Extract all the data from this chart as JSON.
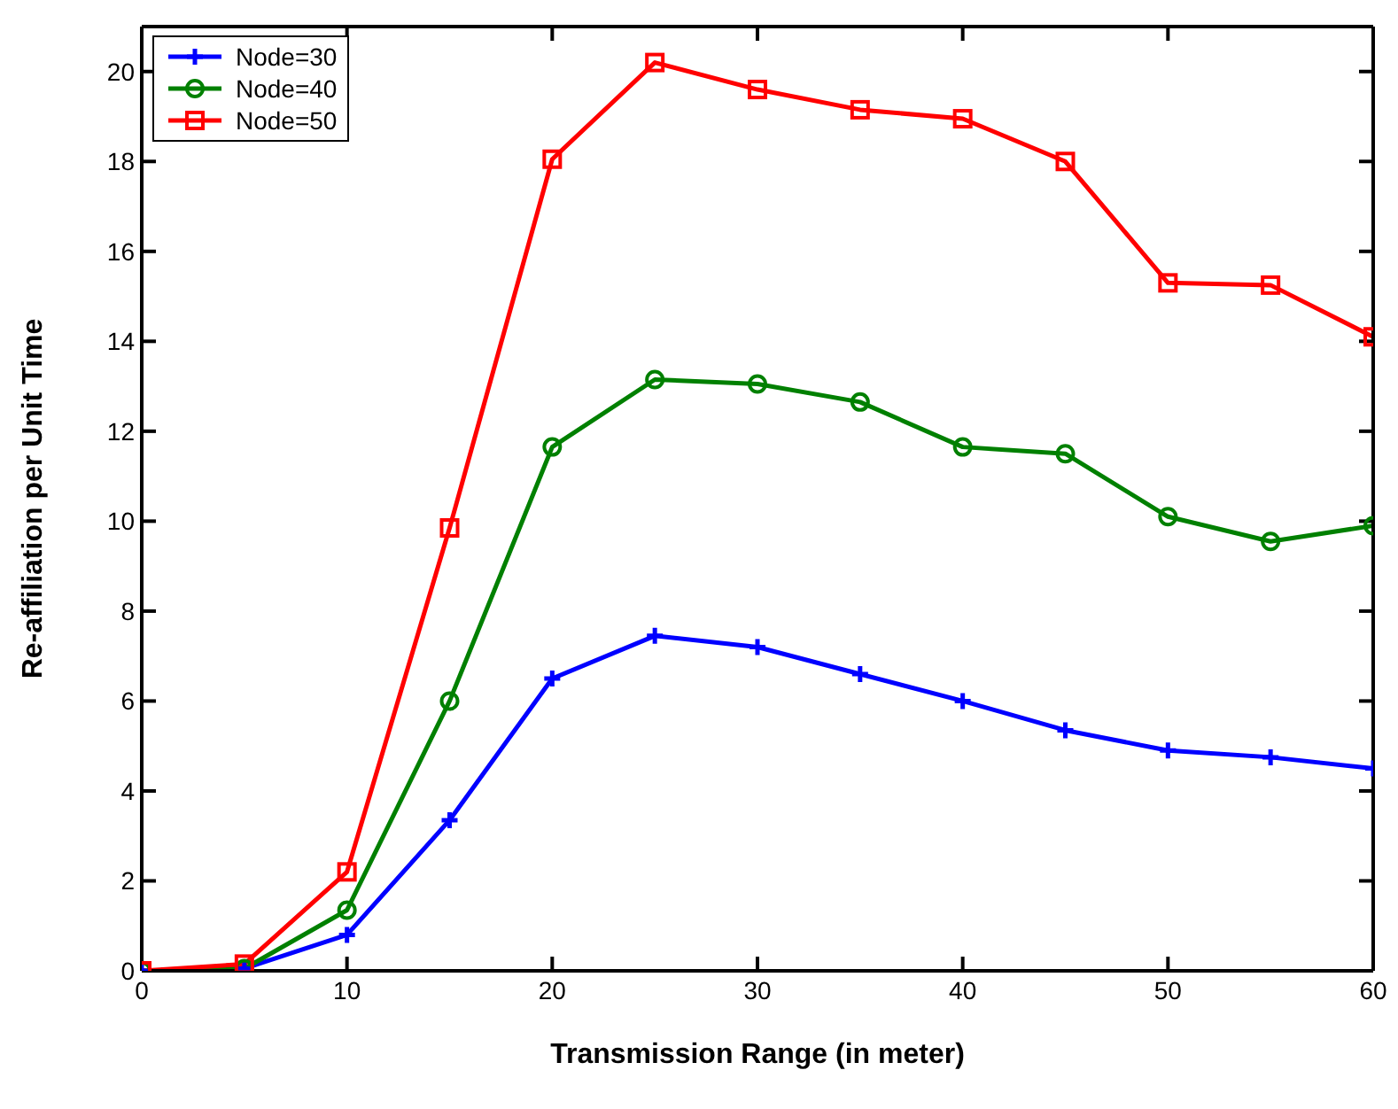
{
  "chart_data": {
    "type": "line",
    "xlabel": "Transmission Range (in meter)",
    "ylabel": "Re-affiliation per Unit Time",
    "x": [
      0,
      5,
      10,
      15,
      20,
      25,
      30,
      35,
      40,
      45,
      50,
      55,
      60
    ],
    "series": [
      {
        "name": "Node=30",
        "color": "#0000ff",
        "marker": "cross",
        "values": [
          0,
          0.05,
          0.8,
          3.35,
          6.5,
          7.45,
          7.2,
          6.6,
          6.0,
          5.35,
          4.9,
          4.75,
          4.5
        ]
      },
      {
        "name": "Node=40",
        "color": "#008000",
        "marker": "circle",
        "values": [
          0,
          0.05,
          1.35,
          6.0,
          11.65,
          13.15,
          13.05,
          12.65,
          11.65,
          11.5,
          10.1,
          9.55,
          9.9
        ]
      },
      {
        "name": "Node=50",
        "color": "#ff0000",
        "marker": "square",
        "values": [
          0,
          0.15,
          2.2,
          9.85,
          18.05,
          20.2,
          19.6,
          19.15,
          18.95,
          18.0,
          15.3,
          15.25,
          14.1
        ]
      }
    ],
    "xlim": [
      0,
      60
    ],
    "xticks": [
      0,
      10,
      20,
      30,
      40,
      50,
      60
    ],
    "ylim": [
      0,
      21
    ],
    "yticks": [
      0,
      2,
      4,
      6,
      8,
      10,
      12,
      14,
      16,
      18,
      20
    ],
    "grid": false,
    "legend": "top left",
    "line_style": "solid"
  }
}
